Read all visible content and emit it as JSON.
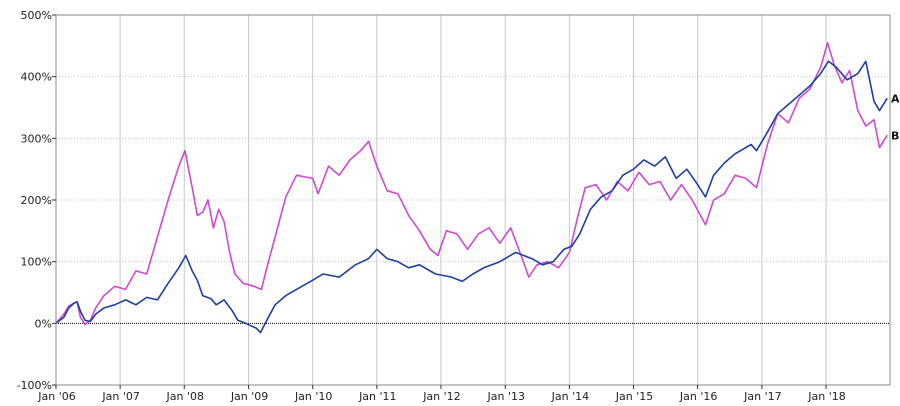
{
  "chart_data": {
    "type": "line",
    "title": "",
    "xlabel": "",
    "ylabel": "",
    "grid": true,
    "legend": "end-of-line labels",
    "x_range": [
      "2006-01-01",
      "2018-12-31"
    ],
    "ylim": [
      -100,
      500
    ],
    "x_ticks": [
      {
        "date": "2006-01-01",
        "label": "Jan '06"
      },
      {
        "date": "2007-01-01",
        "label": "Jan '07"
      },
      {
        "date": "2008-01-01",
        "label": "Jan '08"
      },
      {
        "date": "2009-01-01",
        "label": "Jan '09"
      },
      {
        "date": "2010-01-01",
        "label": "Jan '10"
      },
      {
        "date": "2011-01-01",
        "label": "Jan '11"
      },
      {
        "date": "2012-01-01",
        "label": "Jan '12"
      },
      {
        "date": "2013-01-01",
        "label": "Jan '13"
      },
      {
        "date": "2014-01-01",
        "label": "Jan '14"
      },
      {
        "date": "2015-01-01",
        "label": "Jan '15"
      },
      {
        "date": "2016-01-01",
        "label": "Jan '16"
      },
      {
        "date": "2017-01-01",
        "label": "Jan '17"
      },
      {
        "date": "2018-01-01",
        "label": "Jan '18"
      }
    ],
    "y_ticks": [
      {
        "value": -100,
        "label": "-100%"
      },
      {
        "value": 0,
        "label": "0%"
      },
      {
        "value": 100,
        "label": "100%"
      },
      {
        "value": 200,
        "label": "200%"
      },
      {
        "value": 300,
        "label": "300%"
      },
      {
        "value": 400,
        "label": "400%"
      },
      {
        "value": 500,
        "label": "500%"
      }
    ],
    "series": [
      {
        "name": "A",
        "color": "#1f3f9f",
        "points": [
          [
            "2006-01-01",
            0
          ],
          [
            "2006-02-15",
            10
          ],
          [
            "2006-03-15",
            25
          ],
          [
            "2006-04-15",
            33
          ],
          [
            "2006-05-01",
            35
          ],
          [
            "2006-05-20",
            20
          ],
          [
            "2006-06-15",
            5
          ],
          [
            "2006-07-15",
            3
          ],
          [
            "2006-08-15",
            15
          ],
          [
            "2006-10-01",
            25
          ],
          [
            "2006-12-01",
            30
          ],
          [
            "2007-02-01",
            38
          ],
          [
            "2007-04-01",
            30
          ],
          [
            "2007-06-01",
            42
          ],
          [
            "2007-08-01",
            38
          ],
          [
            "2007-10-01",
            65
          ],
          [
            "2007-12-01",
            90
          ],
          [
            "2008-01-10",
            110
          ],
          [
            "2008-02-15",
            85
          ],
          [
            "2008-03-15",
            70
          ],
          [
            "2008-04-15",
            45
          ],
          [
            "2008-06-01",
            40
          ],
          [
            "2008-07-01",
            30
          ],
          [
            "2008-08-15",
            38
          ],
          [
            "2008-10-01",
            20
          ],
          [
            "2008-11-01",
            5
          ],
          [
            "2008-12-15",
            0
          ],
          [
            "2009-02-15",
            -8
          ],
          [
            "2009-03-10",
            -15
          ],
          [
            "2009-04-15",
            5
          ],
          [
            "2009-06-01",
            30
          ],
          [
            "2009-08-01",
            45
          ],
          [
            "2009-10-01",
            55
          ],
          [
            "2010-01-01",
            70
          ],
          [
            "2010-03-01",
            80
          ],
          [
            "2010-06-01",
            75
          ],
          [
            "2010-09-01",
            95
          ],
          [
            "2010-11-15",
            105
          ],
          [
            "2011-01-01",
            120
          ],
          [
            "2011-03-01",
            105
          ],
          [
            "2011-05-01",
            100
          ],
          [
            "2011-07-01",
            90
          ],
          [
            "2011-09-01",
            95
          ],
          [
            "2011-12-01",
            80
          ],
          [
            "2012-03-01",
            75
          ],
          [
            "2012-05-01",
            68
          ],
          [
            "2012-07-01",
            80
          ],
          [
            "2012-09-01",
            90
          ],
          [
            "2012-12-01",
            100
          ],
          [
            "2013-03-01",
            115
          ],
          [
            "2013-06-01",
            105
          ],
          [
            "2013-08-01",
            95
          ],
          [
            "2013-10-01",
            100
          ],
          [
            "2013-12-01",
            120
          ],
          [
            "2014-01-15",
            125
          ],
          [
            "2014-03-01",
            145
          ],
          [
            "2014-05-01",
            185
          ],
          [
            "2014-07-01",
            205
          ],
          [
            "2014-09-01",
            215
          ],
          [
            "2014-11-01",
            240
          ],
          [
            "2015-01-01",
            250
          ],
          [
            "2015-03-01",
            265
          ],
          [
            "2015-05-01",
            255
          ],
          [
            "2015-07-01",
            270
          ],
          [
            "2015-09-01",
            235
          ],
          [
            "2015-11-01",
            250
          ],
          [
            "2016-01-01",
            225
          ],
          [
            "2016-02-15",
            205
          ],
          [
            "2016-04-01",
            240
          ],
          [
            "2016-06-01",
            260
          ],
          [
            "2016-08-01",
            275
          ],
          [
            "2016-11-01",
            290
          ],
          [
            "2016-12-01",
            280
          ],
          [
            "2017-02-01",
            310
          ],
          [
            "2017-04-01",
            340
          ],
          [
            "2017-06-01",
            355
          ],
          [
            "2017-08-01",
            370
          ],
          [
            "2017-10-01",
            385
          ],
          [
            "2017-12-01",
            405
          ],
          [
            "2018-01-15",
            425
          ],
          [
            "2018-03-01",
            415
          ],
          [
            "2018-05-01",
            395
          ],
          [
            "2018-07-01",
            405
          ],
          [
            "2018-08-15",
            425
          ],
          [
            "2018-10-01",
            360
          ],
          [
            "2018-11-01",
            345
          ],
          [
            "2018-12-15",
            365
          ]
        ]
      },
      {
        "name": "B",
        "color": "#d04ad0",
        "points": [
          [
            "2006-01-01",
            0
          ],
          [
            "2006-02-15",
            15
          ],
          [
            "2006-03-15",
            28
          ],
          [
            "2006-04-15",
            33
          ],
          [
            "2006-05-01",
            35
          ],
          [
            "2006-05-20",
            10
          ],
          [
            "2006-06-15",
            -2
          ],
          [
            "2006-07-15",
            5
          ],
          [
            "2006-08-15",
            25
          ],
          [
            "2006-10-01",
            45
          ],
          [
            "2006-12-01",
            60
          ],
          [
            "2007-02-01",
            55
          ],
          [
            "2007-04-01",
            85
          ],
          [
            "2007-06-01",
            80
          ],
          [
            "2007-08-01",
            140
          ],
          [
            "2007-10-01",
            200
          ],
          [
            "2007-12-01",
            255
          ],
          [
            "2008-01-05",
            280
          ],
          [
            "2008-02-15",
            220
          ],
          [
            "2008-03-15",
            175
          ],
          [
            "2008-04-15",
            180
          ],
          [
            "2008-05-15",
            200
          ],
          [
            "2008-06-15",
            155
          ],
          [
            "2008-07-15",
            185
          ],
          [
            "2008-08-15",
            165
          ],
          [
            "2008-09-15",
            115
          ],
          [
            "2008-10-15",
            80
          ],
          [
            "2008-12-01",
            65
          ],
          [
            "2009-02-01",
            60
          ],
          [
            "2009-03-15",
            55
          ],
          [
            "2009-04-15",
            90
          ],
          [
            "2009-06-01",
            140
          ],
          [
            "2009-08-01",
            205
          ],
          [
            "2009-10-01",
            240
          ],
          [
            "2010-01-01",
            235
          ],
          [
            "2010-02-01",
            210
          ],
          [
            "2010-04-01",
            255
          ],
          [
            "2010-06-01",
            240
          ],
          [
            "2010-08-01",
            265
          ],
          [
            "2010-10-01",
            280
          ],
          [
            "2010-11-15",
            295
          ],
          [
            "2011-01-01",
            255
          ],
          [
            "2011-03-01",
            215
          ],
          [
            "2011-05-01",
            210
          ],
          [
            "2011-07-01",
            175
          ],
          [
            "2011-09-01",
            150
          ],
          [
            "2011-11-01",
            120
          ],
          [
            "2011-12-15",
            110
          ],
          [
            "2012-02-01",
            150
          ],
          [
            "2012-04-01",
            145
          ],
          [
            "2012-06-01",
            120
          ],
          [
            "2012-08-01",
            145
          ],
          [
            "2012-10-01",
            155
          ],
          [
            "2012-12-01",
            130
          ],
          [
            "2013-02-01",
            155
          ],
          [
            "2013-04-01",
            110
          ],
          [
            "2013-05-15",
            75
          ],
          [
            "2013-07-01",
            95
          ],
          [
            "2013-09-01",
            100
          ],
          [
            "2013-11-01",
            90
          ],
          [
            "2014-01-01",
            115
          ],
          [
            "2014-02-15",
            170
          ],
          [
            "2014-04-01",
            220
          ],
          [
            "2014-06-01",
            225
          ],
          [
            "2014-08-01",
            200
          ],
          [
            "2014-10-01",
            230
          ],
          [
            "2014-12-01",
            215
          ],
          [
            "2015-02-01",
            245
          ],
          [
            "2015-04-01",
            225
          ],
          [
            "2015-06-01",
            230
          ],
          [
            "2015-08-01",
            200
          ],
          [
            "2015-10-01",
            225
          ],
          [
            "2015-12-01",
            200
          ],
          [
            "2016-02-15",
            160
          ],
          [
            "2016-04-01",
            200
          ],
          [
            "2016-06-01",
            210
          ],
          [
            "2016-08-01",
            240
          ],
          [
            "2016-10-01",
            235
          ],
          [
            "2016-12-01",
            220
          ],
          [
            "2017-02-01",
            290
          ],
          [
            "2017-04-01",
            340
          ],
          [
            "2017-06-01",
            325
          ],
          [
            "2017-08-01",
            365
          ],
          [
            "2017-10-01",
            380
          ],
          [
            "2017-12-01",
            415
          ],
          [
            "2018-01-10",
            455
          ],
          [
            "2018-02-15",
            420
          ],
          [
            "2018-04-01",
            390
          ],
          [
            "2018-05-15",
            410
          ],
          [
            "2018-07-01",
            345
          ],
          [
            "2018-08-15",
            320
          ],
          [
            "2018-10-01",
            330
          ],
          [
            "2018-11-01",
            285
          ],
          [
            "2018-12-15",
            305
          ]
        ]
      }
    ]
  }
}
